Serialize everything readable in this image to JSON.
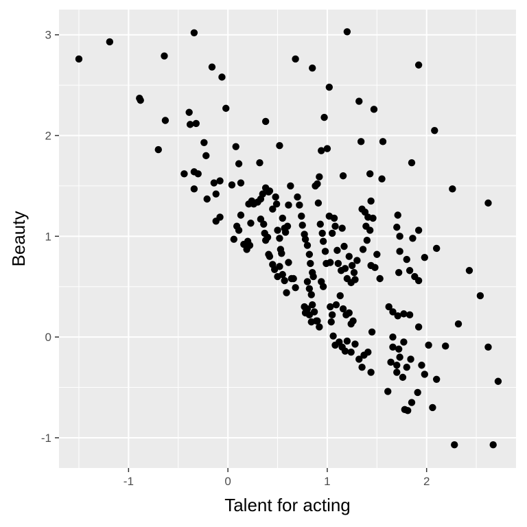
{
  "chart_data": {
    "type": "scatter",
    "title": "",
    "xlabel": "Talent for acting",
    "ylabel": "Beauty",
    "xlim": [
      -1.7,
      2.9
    ],
    "ylim": [
      -1.3,
      3.25
    ],
    "x_major_ticks": [
      -1,
      0,
      1,
      2
    ],
    "x_minor_ticks": [
      -1.5,
      -0.5,
      0.5,
      1.5,
      2.5
    ],
    "y_major_ticks": [
      -1,
      0,
      1,
      2,
      3
    ],
    "y_minor_ticks": [
      -0.5,
      0.5,
      1.5,
      2.5
    ],
    "grid": true,
    "legend": "none",
    "colors": {
      "panel": "#ebebeb",
      "grid": "#ffffff",
      "point": "#000000",
      "tick_text": "#4d4d4d",
      "axis_title": "#000000"
    },
    "points": [
      [
        -1.5,
        2.76
      ],
      [
        -1.19,
        2.93
      ],
      [
        -0.34,
        3.02
      ],
      [
        -0.64,
        2.79
      ],
      [
        -0.89,
        2.37
      ],
      [
        -0.88,
        2.35
      ],
      [
        -0.16,
        2.68
      ],
      [
        -0.06,
        2.58
      ],
      [
        -0.39,
        2.23
      ],
      [
        -0.38,
        2.11
      ],
      [
        -0.32,
        2.12
      ],
      [
        -0.02,
        2.27
      ],
      [
        -0.63,
        2.15
      ],
      [
        -0.7,
        1.86
      ],
      [
        -0.24,
        1.93
      ],
      [
        -0.22,
        1.8
      ],
      [
        0.08,
        1.89
      ],
      [
        0.11,
        1.72
      ],
      [
        0.38,
        2.14
      ],
      [
        0.32,
        1.73
      ],
      [
        0.52,
        1.9
      ],
      [
        -0.44,
        1.62
      ],
      [
        -0.34,
        1.64
      ],
      [
        -0.3,
        1.62
      ],
      [
        -0.34,
        1.47
      ],
      [
        -0.14,
        1.53
      ],
      [
        -0.08,
        1.55
      ],
      [
        -0.12,
        1.42
      ],
      [
        -0.21,
        1.37
      ],
      [
        0.04,
        1.51
      ],
      [
        0.13,
        1.53
      ],
      [
        -0.08,
        1.19
      ],
      [
        -0.12,
        1.15
      ],
      [
        0.06,
        0.97
      ],
      [
        0.09,
        1.1
      ],
      [
        0.11,
        1.06
      ],
      [
        0.13,
        1.21
      ],
      [
        0.16,
        0.92
      ],
      [
        0.19,
        0.87
      ],
      [
        0.2,
        0.95
      ],
      [
        0.22,
        0.91
      ],
      [
        0.23,
        1.13
      ],
      [
        0.21,
        1.32
      ],
      [
        0.24,
        1.35
      ],
      [
        0.26,
        1.32
      ],
      [
        0.3,
        1.34
      ],
      [
        0.33,
        1.37
      ],
      [
        0.35,
        1.42
      ],
      [
        0.38,
        1.48
      ],
      [
        0.41,
        1.44
      ],
      [
        0.42,
        1.45
      ],
      [
        0.33,
        1.17
      ],
      [
        0.36,
        1.12
      ],
      [
        0.37,
        1.03
      ],
      [
        0.38,
        0.96
      ],
      [
        0.4,
        0.99
      ],
      [
        0.41,
        0.82
      ],
      [
        0.42,
        0.8
      ],
      [
        0.45,
        1.27
      ],
      [
        0.48,
        1.39
      ],
      [
        0.49,
        1.32
      ],
      [
        0.5,
        1.06
      ],
      [
        0.52,
        0.98
      ],
      [
        0.53,
        0.87
      ],
      [
        0.54,
        0.83
      ],
      [
        0.55,
        1.18
      ],
      [
        0.57,
        1.08
      ],
      [
        0.58,
        1.04
      ],
      [
        0.6,
        1.1
      ],
      [
        0.61,
        1.31
      ],
      [
        0.63,
        1.5
      ],
      [
        0.45,
        0.72
      ],
      [
        0.47,
        0.67
      ],
      [
        0.5,
        0.6
      ],
      [
        0.52,
        0.7
      ],
      [
        0.55,
        0.62
      ],
      [
        0.57,
        0.56
      ],
      [
        0.59,
        0.44
      ],
      [
        0.61,
        0.74
      ],
      [
        0.64,
        0.58
      ],
      [
        0.66,
        0.58
      ],
      [
        0.68,
        0.49
      ],
      [
        0.7,
        1.39
      ],
      [
        0.72,
        1.31
      ],
      [
        0.74,
        1.2
      ],
      [
        0.75,
        1.11
      ],
      [
        0.77,
        1.02
      ],
      [
        0.78,
        0.97
      ],
      [
        0.8,
        0.91
      ],
      [
        0.82,
        0.82
      ],
      [
        0.83,
        0.73
      ],
      [
        0.85,
        0.64
      ],
      [
        0.86,
        0.6
      ],
      [
        0.88,
        1.5
      ],
      [
        0.9,
        1.52
      ],
      [
        0.91,
        1.33
      ],
      [
        0.93,
        1.12
      ],
      [
        0.95,
        1.03
      ],
      [
        0.96,
        0.95
      ],
      [
        0.98,
        0.85
      ],
      [
        0.99,
        0.73
      ],
      [
        0.8,
        0.55
      ],
      [
        0.82,
        0.48
      ],
      [
        0.84,
        0.42
      ],
      [
        0.85,
        0.32
      ],
      [
        0.87,
        0.25
      ],
      [
        0.89,
        0.16
      ],
      [
        0.9,
        0.16
      ],
      [
        0.92,
        0.1
      ],
      [
        0.94,
        0.55
      ],
      [
        0.96,
        0.5
      ],
      [
        0.77,
        0.3
      ],
      [
        0.78,
        0.24
      ],
      [
        0.8,
        0.28
      ],
      [
        0.82,
        0.22
      ],
      [
        0.84,
        0.15
      ],
      [
        0.68,
        2.76
      ],
      [
        0.85,
        2.67
      ],
      [
        1.2,
        3.03
      ],
      [
        1.02,
        2.48
      ],
      [
        0.97,
        2.18
      ],
      [
        1.32,
        2.34
      ],
      [
        1.47,
        2.26
      ],
      [
        1.92,
        2.7
      ],
      [
        1.34,
        1.94
      ],
      [
        1.56,
        1.94
      ],
      [
        2.08,
        2.05
      ],
      [
        1.85,
        1.73
      ],
      [
        0.94,
        1.85
      ],
      [
        1.0,
        1.87
      ],
      [
        0.92,
        1.59
      ],
      [
        1.16,
        1.6
      ],
      [
        1.43,
        1.62
      ],
      [
        1.55,
        1.57
      ],
      [
        1.02,
        1.2
      ],
      [
        1.07,
        1.18
      ],
      [
        1.08,
        1.1
      ],
      [
        1.05,
        1.03
      ],
      [
        1.15,
        1.08
      ],
      [
        1.17,
        0.9
      ],
      [
        1.1,
        0.86
      ],
      [
        1.03,
        0.74
      ],
      [
        1.11,
        0.73
      ],
      [
        1.14,
        0.66
      ],
      [
        1.18,
        0.68
      ],
      [
        1.22,
        0.8
      ],
      [
        1.25,
        0.71
      ],
      [
        1.27,
        0.64
      ],
      [
        1.3,
        0.76
      ],
      [
        1.2,
        0.58
      ],
      [
        1.24,
        0.54
      ],
      [
        1.28,
        0.57
      ],
      [
        1.35,
        1.27
      ],
      [
        1.38,
        1.24
      ],
      [
        1.41,
        1.19
      ],
      [
        1.44,
        1.35
      ],
      [
        1.46,
        1.18
      ],
      [
        1.39,
        1.1
      ],
      [
        1.43,
        1.06
      ],
      [
        1.4,
        0.96
      ],
      [
        1.36,
        0.87
      ],
      [
        1.48,
        0.69
      ],
      [
        1.44,
        0.71
      ],
      [
        1.5,
        0.82
      ],
      [
        1.53,
        0.58
      ],
      [
        1.71,
        1.21
      ],
      [
        1.7,
        1.09
      ],
      [
        1.73,
        1.0
      ],
      [
        1.73,
        0.85
      ],
      [
        1.8,
        0.77
      ],
      [
        1.86,
        0.98
      ],
      [
        1.92,
        1.06
      ],
      [
        1.98,
        0.79
      ],
      [
        2.1,
        0.88
      ],
      [
        1.72,
        0.64
      ],
      [
        1.83,
        0.66
      ],
      [
        1.88,
        0.6
      ],
      [
        1.92,
        0.56
      ],
      [
        1.03,
        0.3
      ],
      [
        1.05,
        0.22
      ],
      [
        1.09,
        0.32
      ],
      [
        1.13,
        0.41
      ],
      [
        1.16,
        0.28
      ],
      [
        1.19,
        0.22
      ],
      [
        1.22,
        0.24
      ],
      [
        1.24,
        0.13
      ],
      [
        1.26,
        0.16
      ],
      [
        1.04,
        0.15
      ],
      [
        1.06,
        0.01
      ],
      [
        1.08,
        -0.08
      ],
      [
        1.12,
        -0.05
      ],
      [
        1.15,
        -0.1
      ],
      [
        1.18,
        -0.14
      ],
      [
        1.2,
        -0.04
      ],
      [
        1.24,
        -0.15
      ],
      [
        1.28,
        -0.07
      ],
      [
        1.32,
        -0.22
      ],
      [
        1.35,
        -0.3
      ],
      [
        1.37,
        -0.18
      ],
      [
        1.41,
        -0.15
      ],
      [
        1.44,
        -0.35
      ],
      [
        1.45,
        0.05
      ],
      [
        1.66,
        0.25
      ],
      [
        1.71,
        0.21
      ],
      [
        1.77,
        0.23
      ],
      [
        1.83,
        0.22
      ],
      [
        1.92,
        0.1
      ],
      [
        1.61,
        -0.54
      ],
      [
        1.64,
        -0.25
      ],
      [
        1.66,
        -0.1
      ],
      [
        1.7,
        -0.28
      ],
      [
        1.72,
        -0.12
      ],
      [
        1.7,
        -0.35
      ],
      [
        1.76,
        -0.4
      ],
      [
        1.8,
        -0.3
      ],
      [
        1.84,
        -0.22
      ],
      [
        1.95,
        -0.28
      ],
      [
        1.98,
        -0.37
      ],
      [
        2.02,
        -0.08
      ],
      [
        2.1,
        -0.42
      ],
      [
        1.78,
        -0.72
      ],
      [
        1.81,
        -0.73
      ],
      [
        1.85,
        -0.65
      ],
      [
        1.91,
        -0.55
      ],
      [
        2.06,
        -0.7
      ],
      [
        2.19,
        -0.09
      ],
      [
        2.26,
        1.47
      ],
      [
        2.32,
        0.13
      ],
      [
        2.43,
        0.66
      ],
      [
        2.54,
        0.41
      ],
      [
        2.62,
        1.33
      ],
      [
        2.62,
        -0.1
      ],
      [
        2.72,
        -0.44
      ],
      [
        2.28,
        -1.07
      ],
      [
        2.67,
        -1.07
      ],
      [
        1.62,
        0.3
      ],
      [
        1.66,
        0.0
      ],
      [
        1.73,
        -0.2
      ],
      [
        1.77,
        -0.05
      ]
    ]
  }
}
